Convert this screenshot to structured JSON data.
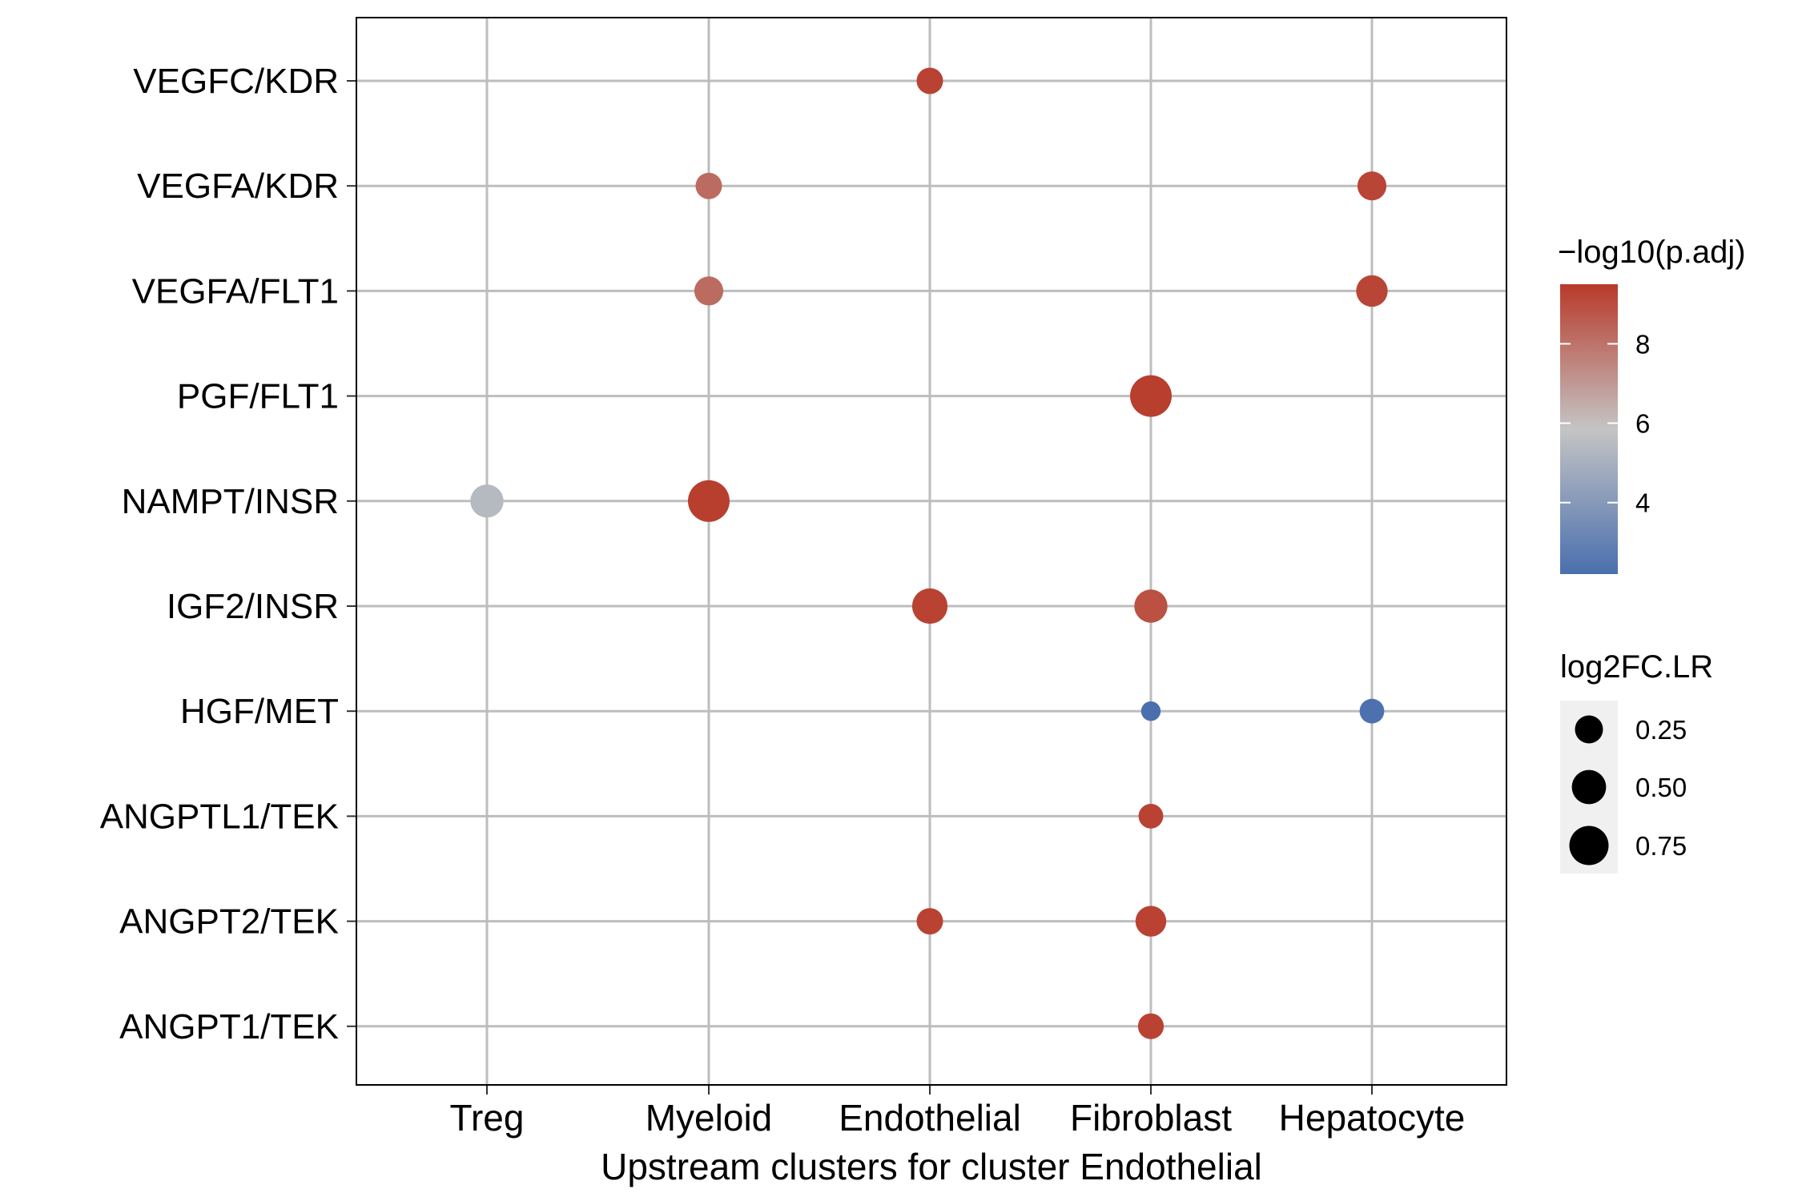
{
  "chart_data": {
    "type": "scatter",
    "title": "",
    "xlabel": "Upstream clusters for cluster Endothelial",
    "ylabel": "",
    "x_categories": [
      "Treg",
      "Myeloid",
      "Endothelial",
      "Fibroblast",
      "Hepatocyte"
    ],
    "y_categories": [
      "VEGFC/KDR",
      "VEGFA/KDR",
      "VEGFA/FLT1",
      "PGF/FLT1",
      "NAMPT/INSR",
      "IGF2/INSR",
      "HGF/MET",
      "ANGPTL1/TEK",
      "ANGPT2/TEK",
      "ANGPT1/TEK"
    ],
    "grid": true,
    "points": [
      {
        "x": "Endothelial",
        "y": "VEGFC/KDR",
        "size": 0.2,
        "color_value": 9.3
      },
      {
        "x": "Myeloid",
        "y": "VEGFA/KDR",
        "size": 0.2,
        "color_value": 8.2
      },
      {
        "x": "Hepatocyte",
        "y": "VEGFA/KDR",
        "size": 0.28,
        "color_value": 9.2
      },
      {
        "x": "Myeloid",
        "y": "VEGFA/FLT1",
        "size": 0.28,
        "color_value": 8.2
      },
      {
        "x": "Hepatocyte",
        "y": "VEGFA/FLT1",
        "size": 0.38,
        "color_value": 9.2
      },
      {
        "x": "Fibroblast",
        "y": "PGF/FLT1",
        "size": 0.9,
        "color_value": 9.4
      },
      {
        "x": "Treg",
        "y": "NAMPT/INSR",
        "size": 0.45,
        "color_value": 5.4
      },
      {
        "x": "Myeloid",
        "y": "NAMPT/INSR",
        "size": 0.9,
        "color_value": 9.4
      },
      {
        "x": "Endothelial",
        "y": "IGF2/INSR",
        "size": 0.55,
        "color_value": 9.3
      },
      {
        "x": "Fibroblast",
        "y": "IGF2/INSR",
        "size": 0.45,
        "color_value": 8.9
      },
      {
        "x": "Fibroblast",
        "y": "HGF/MET",
        "size": 0.05,
        "color_value": 2.2
      },
      {
        "x": "Hepatocyte",
        "y": "HGF/MET",
        "size": 0.15,
        "color_value": 2.3
      },
      {
        "x": "Fibroblast",
        "y": "ANGPTL1/TEK",
        "size": 0.15,
        "color_value": 9.3
      },
      {
        "x": "Endothelial",
        "y": "ANGPT2/TEK",
        "size": 0.2,
        "color_value": 9.3
      },
      {
        "x": "Fibroblast",
        "y": "ANGPT2/TEK",
        "size": 0.35,
        "color_value": 9.3
      },
      {
        "x": "Fibroblast",
        "y": "ANGPT1/TEK",
        "size": 0.18,
        "color_value": 9.3
      }
    ],
    "color_legend": {
      "title": "−log10(p.adj)",
      "ticks": [
        4,
        6,
        8
      ],
      "range": [
        2.2,
        9.5
      ],
      "low_color": "#4a6fae",
      "mid_color": "#c4c4c4",
      "high_color": "#b83a2a",
      "mid_value": 5.85
    },
    "size_legend": {
      "title": "log2FC.LR",
      "ticks": [
        "0.25",
        "0.50",
        "0.75"
      ]
    }
  }
}
